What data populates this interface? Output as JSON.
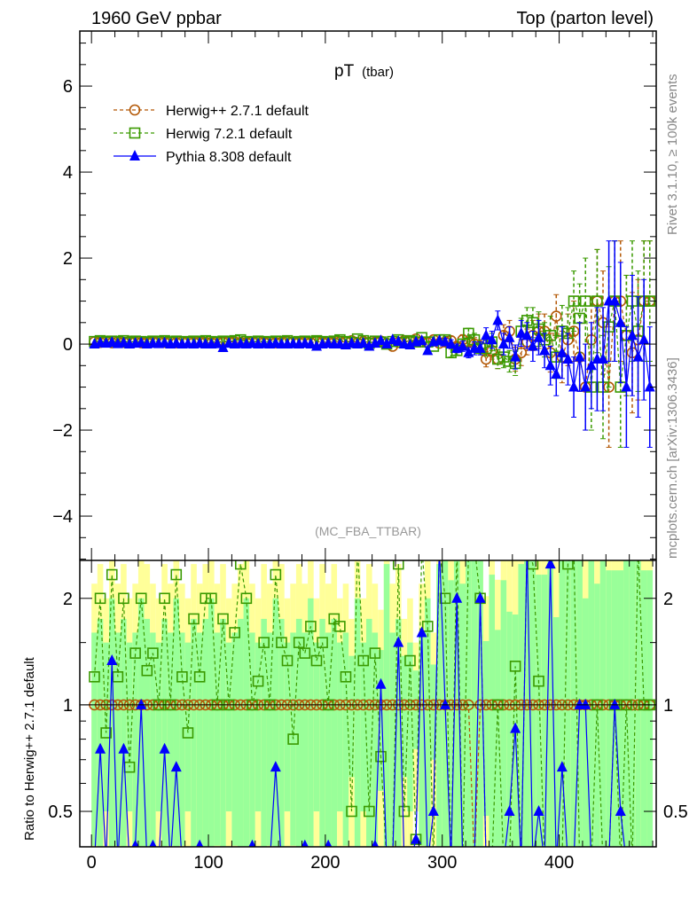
{
  "chart_data": {
    "type": "line",
    "header_left": "1960 GeV ppbar",
    "header_right": "Top (parton level)",
    "title": "pT",
    "title_sub": "(tbar)",
    "analysis": "(MC_FBA_TTBAR)",
    "side_label_top": "Rivet 3.1.10, ≥ 100k events",
    "side_label_bottom": "mcplots.cern.ch [arXiv:1306.3436]",
    "ratio_ylabel": "Ratio to Herwig++ 2.7.1 default",
    "xlim": [
      -10,
      483
    ],
    "ylim": [
      -5.03,
      7.28
    ],
    "ratio_ylim": [
      0.397,
      2.56
    ],
    "ratio_scale": "log",
    "x_ticks": [
      0,
      100,
      200,
      300,
      400
    ],
    "y_ticks": [
      -4,
      -2,
      0,
      2,
      4,
      6
    ],
    "ratio_ticks": [
      0.5,
      1,
      2
    ],
    "bin_start": 2.5,
    "bin_width": 5,
    "legend_position": "top-left",
    "series": [
      {
        "name": "Herwig++ 2.7.1 default",
        "color": "#b35806",
        "marker": "circle",
        "dashed": true,
        "values": [
          0.05,
          0.04,
          0.06,
          0.03,
          0.05,
          0.04,
          0.06,
          0.05,
          0.03,
          0.04,
          0.05,
          0.06,
          0.04,
          0.05,
          0.03,
          0.05,
          0.06,
          0.04,
          0.05,
          0.04,
          0.03,
          0.05,
          0.04,
          0.06,
          0.05,
          0.04,
          0.03,
          0.05,
          0.06,
          0.04,
          0.05,
          0.03,
          0.04,
          0.06,
          0.05,
          0.04,
          0.05,
          0.03,
          0.06,
          0.04,
          0.05,
          0.04,
          0.06,
          0.05,
          0.08,
          0.03,
          0.06,
          0.04,
          0.05,
          0.07,
          0.02,
          -0.05,
          0.04,
          0.08,
          0.06,
          0.12,
          0.05,
          0.03,
          0.1,
          0.02,
          0.05,
          0.08,
          -0.05,
          0.1,
          0.05,
          0.0,
          -0.05,
          -0.35,
          -0.15,
          -0.35,
          0.2,
          0.3,
          -0.35,
          -0.2,
          0.05,
          0.2,
          0.3,
          0.3,
          -0.2,
          0.65,
          -0.3,
          0.1,
          0.3,
          -0.3,
          -1.0,
          0.1,
          1.0,
          0.5,
          -1.0,
          1.0,
          1.0,
          0.2,
          -0.2,
          0.1,
          1.0,
          1.0
        ]
      },
      {
        "name": "Herwig 7.2.1 default",
        "color": "#3a9a00",
        "marker": "square",
        "dashed": true,
        "values": [
          0.06,
          0.08,
          0.05,
          0.07,
          0.06,
          0.08,
          0.04,
          0.07,
          0.06,
          0.05,
          0.07,
          0.06,
          0.08,
          0.05,
          0.07,
          0.06,
          0.05,
          0.07,
          0.06,
          0.08,
          0.06,
          0.05,
          0.07,
          0.06,
          0.08,
          0.1,
          0.06,
          0.05,
          0.07,
          0.06,
          0.05,
          0.07,
          0.06,
          0.08,
          0.04,
          0.06,
          0.07,
          0.05,
          0.08,
          0.06,
          0.05,
          0.07,
          0.1,
          0.06,
          0.04,
          0.12,
          0.08,
          0.02,
          0.07,
          0.05,
          0.0,
          0.06,
          0.1,
          0.04,
          0.08,
          0.05,
          0.15,
          0.05,
          -0.05,
          0.1,
          0.1,
          -0.2,
          -0.15,
          0.0,
          0.25,
          0.1,
          -0.1,
          -0.1,
          0.05,
          -0.35,
          -0.3,
          -0.4,
          -0.45,
          0.3,
          0.55,
          0.5,
          0.35,
          0.1,
          0.2,
          -0.3,
          0.3,
          0.25,
          1.0,
          0.6,
          1.0,
          -1.0,
          1.0,
          -1.0,
          0.4,
          1.0,
          -1.0,
          0.2,
          1.0,
          0.3,
          1.0,
          1.0
        ]
      },
      {
        "name": "Pythia 8.308 default",
        "color": "#0000ff",
        "marker": "triangle",
        "dashed": false,
        "values": [
          0.0,
          0.03,
          0.02,
          0.04,
          0.01,
          0.03,
          0.0,
          0.02,
          0.03,
          0.0,
          0.02,
          0.01,
          0.03,
          0.0,
          0.02,
          0.0,
          0.01,
          0.0,
          0.02,
          0.0,
          0.0,
          0.01,
          -0.08,
          0.02,
          0.0,
          0.01,
          0.0,
          0.02,
          0.0,
          0.01,
          0.0,
          0.02,
          0.0,
          0.0,
          0.01,
          0.0,
          0.02,
          0.0,
          -0.05,
          0.0,
          0.02,
          0.0,
          0.0,
          -0.02,
          0.02,
          0.0,
          0.02,
          -0.05,
          0.02,
          0.08,
          0.0,
          0.1,
          0.06,
          0.0,
          -0.02,
          0.05,
          0.08,
          -0.15,
          0.05,
          0.08,
          0.05,
          0.0,
          -0.1,
          -0.05,
          -0.2,
          -0.1,
          -0.1,
          0.2,
          0.1,
          0.55,
          0.0,
          0.15,
          -0.3,
          0.25,
          0.2,
          -0.05,
          0.15,
          -0.15,
          -0.5,
          -0.7,
          -0.2,
          -0.35,
          -1.0,
          -0.3,
          -1.0,
          -0.5,
          -0.35,
          -0.35,
          1.0,
          1.0,
          0.5,
          -1.0,
          0.2,
          -0.3,
          0.1,
          -1.0
        ]
      }
    ],
    "yerr_low": 0.03,
    "yerr_high": [
      0.08,
      0.1,
      0.1,
      0.12,
      0.12,
      0.15,
      0.15,
      0.18,
      0.2,
      0.22,
      0.25,
      0.25,
      0.28,
      0.3,
      0.3,
      0.35,
      0.4,
      0.4,
      0.45,
      0.5,
      0.6,
      0.6,
      0.7,
      0.8,
      1.0,
      1.0,
      1.2,
      1.2,
      1.4,
      1.4,
      1.4,
      1.4,
      1.4,
      1.4,
      1.4,
      1.4
    ],
    "band_colors": {
      "outer": "#ffff99",
      "inner": "#99ff99"
    }
  }
}
